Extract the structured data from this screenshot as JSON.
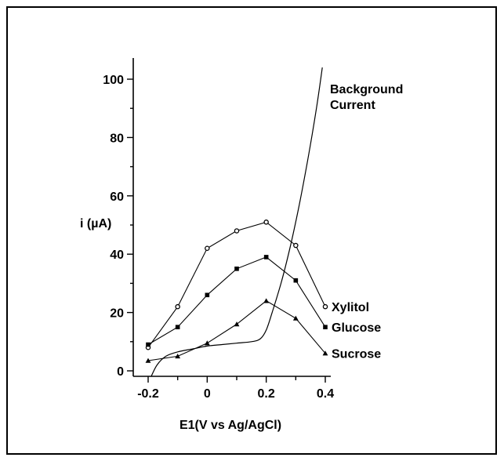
{
  "chart_data": {
    "type": "line",
    "title": "",
    "xlabel": "E1(V vs Ag/AgCl)",
    "ylabel": "i (µA)",
    "xlim": [
      -0.2,
      0.4
    ],
    "ylim": [
      0,
      100
    ],
    "x_ticks": [
      -0.2,
      0,
      0.2,
      0.4
    ],
    "x_tick_labels": [
      "-0.2",
      "0",
      "0.2",
      "0.4"
    ],
    "y_ticks": [
      0,
      20,
      40,
      60,
      80,
      100
    ],
    "y_tick_labels": [
      "0",
      "20",
      "40",
      "60",
      "80",
      "100"
    ],
    "grid": false,
    "legend": "labels at line ends",
    "series": [
      {
        "name": "Xylitol",
        "marker": "circle-open",
        "x": [
          -0.2,
          -0.1,
          0,
          0.1,
          0.2,
          0.3,
          0.4
        ],
        "y": [
          8,
          22,
          42,
          48,
          51,
          43,
          22
        ]
      },
      {
        "name": "Glucose",
        "marker": "square",
        "x": [
          -0.2,
          -0.1,
          0,
          0.1,
          0.2,
          0.3,
          0.4
        ],
        "y": [
          9,
          15,
          26,
          35,
          39,
          31,
          15
        ]
      },
      {
        "name": "Sucrose",
        "marker": "triangle",
        "x": [
          -0.2,
          -0.1,
          0,
          0.1,
          0.2,
          0.3,
          0.4
        ],
        "y": [
          3.5,
          5,
          9.5,
          16,
          24,
          18,
          6
        ]
      },
      {
        "name": "Background Current",
        "marker": "none",
        "x": [
          -0.19,
          -0.17,
          -0.14,
          -0.1,
          -0.05,
          0,
          0.05,
          0.1,
          0.15,
          0.18,
          0.2,
          0.22,
          0.25,
          0.28,
          0.31,
          0.34,
          0.37,
          0.39
        ],
        "y": [
          -2,
          2,
          5,
          6.5,
          7.5,
          8.5,
          9,
          9.5,
          10,
          11,
          14,
          20,
          30,
          42,
          56,
          72,
          90,
          104
        ]
      }
    ],
    "annotations": {
      "background_line1": "Background",
      "background_line2": "Current"
    }
  }
}
